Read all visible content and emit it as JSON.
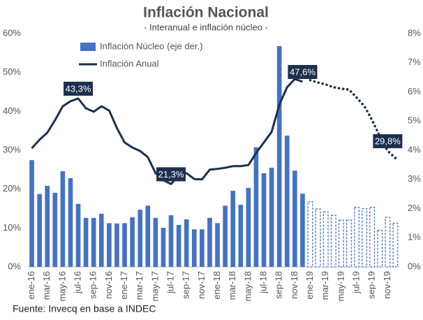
{
  "chart_data": {
    "type": "bar-line",
    "title": "Inflación Nacional",
    "subtitle": "- Interanual e inflación núcleo -",
    "source": "Fuente: Invecq en base a INDEC",
    "categories": [
      "ene-16",
      null,
      "mar-16",
      null,
      "may-16",
      null,
      "jul-16",
      null,
      "sep-16",
      null,
      "nov-16",
      null,
      "ene-17",
      null,
      "mar-17",
      null,
      "may-17",
      null,
      "jul-17",
      null,
      "sep-17",
      null,
      "nov-17",
      null,
      "ene-18",
      null,
      "mar-18",
      null,
      "may-18",
      null,
      "jul-18",
      null,
      "sep-18",
      null,
      "nov-18",
      null,
      "ene-19",
      null,
      "mar-19",
      null,
      "may-19",
      null,
      "jul-19",
      null,
      "sep-19",
      null,
      "nov-19",
      null
    ],
    "dashed_from": "ene-19",
    "series": [
      {
        "name": "Inflación Núcleo (eje der.)",
        "type": "bar",
        "axis": "y2",
        "color": "#4472c4",
        "values": [
          3.66,
          2.5,
          2.78,
          2.54,
          3.28,
          3.04,
          2.16,
          1.68,
          1.68,
          1.82,
          1.5,
          1.49,
          1.5,
          1.7,
          1.96,
          2.1,
          1.68,
          1.34,
          1.77,
          1.44,
          1.63,
          1.29,
          1.29,
          1.68,
          1.5,
          2.1,
          2.61,
          2.13,
          2.71,
          4.1,
          3.21,
          3.4,
          7.57,
          4.5,
          3.3,
          2.51,
          2.23,
          1.99,
          1.89,
          1.77,
          1.6,
          1.6,
          2.04,
          2.0,
          2.04,
          1.25,
          1.7,
          1.5
        ]
      },
      {
        "name": "Inflación Anual",
        "type": "line",
        "color": "#1c2f4e",
        "values": [
          30.5,
          32.7,
          34.5,
          37.7,
          41.3,
          42.6,
          43.3,
          40.8,
          39.9,
          41.3,
          40.2,
          35.7,
          32.0,
          30.7,
          29.8,
          28.2,
          24.1,
          22.3,
          21.3,
          23.4,
          24.1,
          22.6,
          22.5,
          25.0,
          25.2,
          25.5,
          25.9,
          25.9,
          26.2,
          29.3,
          32.0,
          34.7,
          41.7,
          46.2,
          48.3,
          47.6,
          48.0,
          47.4,
          46.9,
          46.2,
          45.8,
          45.6,
          43.5,
          41.3,
          37.7,
          33.5,
          29.8,
          28.0
        ],
        "value_labels": [
          null,
          null,
          null,
          null,
          null,
          null,
          "43,3%",
          null,
          null,
          null,
          null,
          null,
          null,
          null,
          null,
          null,
          null,
          null,
          "21,3%",
          null,
          null,
          null,
          null,
          null,
          null,
          null,
          null,
          null,
          null,
          null,
          null,
          null,
          null,
          null,
          null,
          "47,6%",
          null,
          null,
          null,
          null,
          null,
          null,
          null,
          null,
          null,
          null,
          "29,8%",
          null
        ]
      }
    ],
    "ylim": [
      0,
      60
    ],
    "yticks": [
      {
        "value": 0,
        "label": "0%"
      },
      {
        "value": 10,
        "label": "10%"
      },
      {
        "value": 20,
        "label": "20%"
      },
      {
        "value": 30,
        "label": "30%"
      },
      {
        "value": 40,
        "label": "40%"
      },
      {
        "value": 50,
        "label": "50%"
      },
      {
        "value": 60,
        "label": "60%"
      }
    ],
    "y2lim": [
      0,
      8
    ],
    "y2ticks": [
      {
        "value": 0,
        "label": "0%"
      },
      {
        "value": 1,
        "label": "1%"
      },
      {
        "value": 2,
        "label": "2%"
      },
      {
        "value": 3,
        "label": "3%"
      },
      {
        "value": 4,
        "label": "4%"
      },
      {
        "value": 5,
        "label": "5%"
      },
      {
        "value": 6,
        "label": "6%"
      },
      {
        "value": 7,
        "label": "7%"
      },
      {
        "value": 8,
        "label": "8%"
      }
    ],
    "grid": false
  }
}
